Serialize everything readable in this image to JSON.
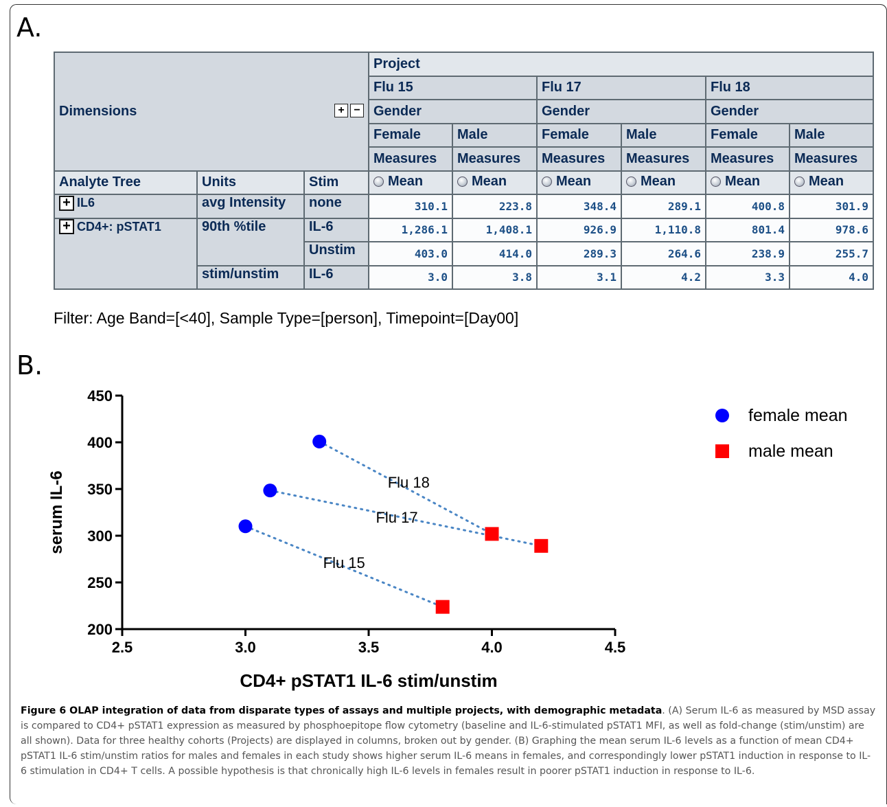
{
  "panel_a_label": "A.",
  "panel_b_label": "B.",
  "table": {
    "dimensions_label": "Dimensions",
    "expand_all": "+",
    "collapse_all": "−",
    "project_label": "Project",
    "projects": [
      "Flu 15",
      "Flu 17",
      "Flu 18"
    ],
    "gender_label": "Gender",
    "genders": [
      "Female",
      "Male",
      "Female",
      "Male",
      "Female",
      "Male"
    ],
    "measures_label": "Measures",
    "row_headers": {
      "analyte": "Analyte Tree",
      "units": "Units",
      "stim": "Stim"
    },
    "mean_label": "Mean",
    "tree_expand": "+",
    "rows": [
      {
        "analyte": "IL6",
        "units": "avg Intensity",
        "stim": "none",
        "values": [
          "310.1",
          "223.8",
          "348.4",
          "289.1",
          "400.8",
          "301.9"
        ]
      },
      {
        "analyte": "CD4+: pSTAT1",
        "units": "90th %tile",
        "stim": "IL-6",
        "values": [
          "1,286.1",
          "1,408.1",
          "926.9",
          "1,110.8",
          "801.4",
          "978.6"
        ]
      },
      {
        "analyte": "",
        "units": "",
        "stim": "Unstim",
        "values": [
          "403.0",
          "414.0",
          "289.3",
          "264.6",
          "238.9",
          "255.7"
        ]
      },
      {
        "analyte": "",
        "units": "stim/unstim",
        "stim": "IL-6",
        "values": [
          "3.0",
          "3.8",
          "3.1",
          "4.2",
          "3.3",
          "4.0"
        ]
      }
    ]
  },
  "filter_text": "Filter:  Age Band=[<40], Sample Type=[person], Timepoint=[Day00]",
  "chart_data": {
    "type": "scatter",
    "xlabel": "CD4+ pSTAT1 IL-6 stim/unstim",
    "ylabel": "serum IL-6",
    "xlim": [
      2.5,
      4.5
    ],
    "ylim": [
      200,
      450
    ],
    "xticks": [
      "2.5",
      "3.0",
      "3.5",
      "4.0",
      "4.5"
    ],
    "yticks": [
      "200",
      "250",
      "300",
      "350",
      "400",
      "450"
    ],
    "legend_position": "top-right",
    "series": [
      {
        "name": "female mean",
        "marker": "circle",
        "color": "#0000ff",
        "points": [
          {
            "x": 3.0,
            "y": 310.1
          },
          {
            "x": 3.1,
            "y": 348.4
          },
          {
            "x": 3.3,
            "y": 400.8
          }
        ]
      },
      {
        "name": "male mean",
        "marker": "square",
        "color": "#ff0000",
        "points": [
          {
            "x": 3.8,
            "y": 223.8
          },
          {
            "x": 4.2,
            "y": 289.1
          },
          {
            "x": 4.0,
            "y": 301.9
          }
        ]
      }
    ],
    "links": [
      {
        "label": "Flu 15",
        "from": {
          "x": 3.0,
          "y": 310.1
        },
        "to": {
          "x": 3.8,
          "y": 223.8
        }
      },
      {
        "label": "Flu 17",
        "from": {
          "x": 3.1,
          "y": 348.4
        },
        "to": {
          "x": 4.2,
          "y": 289.1
        }
      },
      {
        "label": "Flu 18",
        "from": {
          "x": 3.3,
          "y": 400.8
        },
        "to": {
          "x": 4.0,
          "y": 301.9
        }
      }
    ],
    "link_color": "#4a86c5"
  },
  "caption": {
    "title": "Figure 6 OLAP integration of data from disparate types of assays and multiple projects, with demographic metadata",
    "body": ". (A) Serum IL-6 as measured by MSD assay is compared to CD4+ pSTAT1 expression as measured by phosphoepitope flow cytometry (baseline and IL-6-stimulated pSTAT1 MFI, as well as fold-change (stim/unstim) are all shown). Data for three healthy cohorts (Projects) are displayed in columns, broken out by gender. (B) Graphing the mean serum IL-6 levels as a function of mean CD4+ pSTAT1 IL-6 stim/unstim ratios for males and females in each study shows higher serum IL-6 means in females, and correspondingly lower pSTAT1 induction in response to IL-6 stimulation in CD4+ T cells. A possible hypothesis is that chronically high IL-6 levels in females result in poorer pSTAT1 induction in response to IL-6."
  }
}
